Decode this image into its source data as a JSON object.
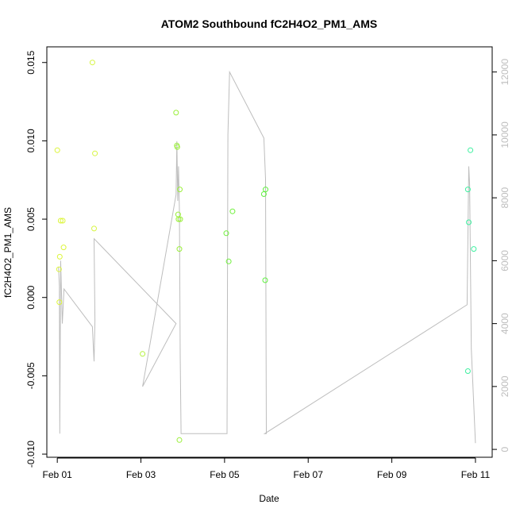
{
  "chart_data": {
    "type": "scatter",
    "title": "ATOM2 Southbound fC2H4O2_PM1_AMS",
    "xlabel": "Date",
    "ylabel": "fC2H4O2_PM1_AMS",
    "x_ticks": [
      "Feb 01",
      "Feb 03",
      "Feb 05",
      "Feb 07",
      "Feb 09",
      "Feb 11"
    ],
    "x_tick_values": [
      1,
      3,
      5,
      7,
      9,
      11
    ],
    "xlim": [
      0.75,
      11.4
    ],
    "ylim": [
      -0.0102,
      0.016
    ],
    "y_ticks": [
      "-0.010",
      "-0.005",
      "0.000",
      "0.005",
      "0.010",
      "0.015"
    ],
    "y_tick_values": [
      -0.01,
      -0.005,
      0.0,
      0.005,
      0.01,
      0.015
    ],
    "y2lim": [
      -250,
      12800
    ],
    "y2_ticks": [
      "0",
      "2000",
      "4000",
      "6000",
      "8000",
      "10000",
      "12000"
    ],
    "y2_tick_values": [
      0,
      2000,
      4000,
      6000,
      8000,
      10000,
      12000
    ],
    "colors": {
      "points_early": "#d7f542",
      "points_mid": "#8fef3c",
      "points_late": "#3ef0a0",
      "secondary_line": "#bdbdbd"
    },
    "points": [
      {
        "x": 1.0,
        "y": 0.0094,
        "color": "#dcf53a"
      },
      {
        "x": 1.04,
        "y": 0.0018,
        "color": "#dcf53a"
      },
      {
        "x": 1.06,
        "y": 0.0026,
        "color": "#dcf53a"
      },
      {
        "x": 1.05,
        "y": -0.0003,
        "color": "#dcf53a"
      },
      {
        "x": 1.08,
        "y": 0.0049,
        "color": "#dcf53a"
      },
      {
        "x": 1.13,
        "y": 0.0049,
        "color": "#dcf53a"
      },
      {
        "x": 1.15,
        "y": 0.0032,
        "color": "#dcf53a"
      },
      {
        "x": 1.84,
        "y": 0.015,
        "color": "#d7f542"
      },
      {
        "x": 1.9,
        "y": 0.0092,
        "color": "#d7f542"
      },
      {
        "x": 1.88,
        "y": 0.0044,
        "color": "#d7f542"
      },
      {
        "x": 3.04,
        "y": -0.0036,
        "color": "#b4f23c"
      },
      {
        "x": 3.84,
        "y": 0.0118,
        "color": "#9aef3a"
      },
      {
        "x": 3.86,
        "y": 0.0097,
        "color": "#9aef3a"
      },
      {
        "x": 3.87,
        "y": 0.0096,
        "color": "#9aef3a"
      },
      {
        "x": 3.89,
        "y": 0.0053,
        "color": "#9aef3a"
      },
      {
        "x": 3.9,
        "y": 0.005,
        "color": "#9aef3a"
      },
      {
        "x": 3.94,
        "y": 0.005,
        "color": "#9aef3a"
      },
      {
        "x": 3.93,
        "y": 0.0069,
        "color": "#9aef3a"
      },
      {
        "x": 3.92,
        "y": 0.0031,
        "color": "#9aef3a"
      },
      {
        "x": 3.92,
        "y": -0.0091,
        "color": "#9aef3a"
      },
      {
        "x": 5.04,
        "y": 0.0041,
        "color": "#6ef03a"
      },
      {
        "x": 5.1,
        "y": 0.0023,
        "color": "#6ef03a"
      },
      {
        "x": 5.19,
        "y": 0.0055,
        "color": "#6ef03a"
      },
      {
        "x": 5.94,
        "y": 0.0066,
        "color": "#5ff03f"
      },
      {
        "x": 5.98,
        "y": 0.0069,
        "color": "#5ff03f"
      },
      {
        "x": 5.97,
        "y": 0.0011,
        "color": "#5ff03f"
      },
      {
        "x": 10.82,
        "y": 0.0069,
        "color": "#3ef0a0"
      },
      {
        "x": 10.84,
        "y": 0.0048,
        "color": "#3ef0a0"
      },
      {
        "x": 10.88,
        "y": 0.0094,
        "color": "#3ef0a0"
      },
      {
        "x": 10.82,
        "y": -0.0047,
        "color": "#3ef0a0"
      },
      {
        "x": 10.96,
        "y": 0.0031,
        "color": "#3ef0a0"
      }
    ],
    "secondary_series": {
      "x": [
        1.03,
        1.05,
        1.06,
        1.08,
        1.12,
        1.16,
        1.84,
        1.86,
        1.88,
        1.9,
        1.88,
        3.84,
        3.04,
        3.84,
        3.86,
        3.88,
        3.9,
        3.92,
        3.94,
        3.96,
        5.06,
        5.08,
        5.12,
        5.94,
        5.98,
        6.0,
        5.96,
        10.8,
        10.84,
        10.86,
        10.9,
        11.0
      ],
      "y": [
        5800,
        5200,
        500,
        6000,
        4000,
        5100,
        3900,
        3300,
        2800,
        4100,
        6700,
        4000,
        2000,
        8100,
        9800,
        7900,
        9000,
        7600,
        3000,
        500,
        500,
        10000,
        12000,
        9900,
        8600,
        500,
        500,
        4600,
        9000,
        8400,
        3200,
        200
      ]
    }
  }
}
